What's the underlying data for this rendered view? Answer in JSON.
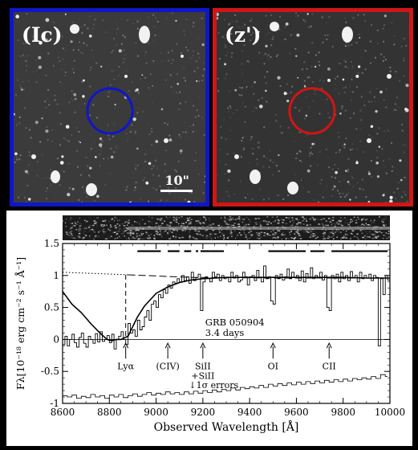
{
  "images": {
    "ic": {
      "band_label": "(Ic)",
      "circle_color": "#1016c8",
      "frame_color": "#1016c8"
    },
    "z": {
      "band_label": "(z')",
      "circle_color": "#d21515",
      "frame_color": "#d21515"
    },
    "scale_label": "10\""
  },
  "chart_data": {
    "type": "line",
    "title": "",
    "xlabel": "Observed Wavelength [Å]",
    "ylabel": "Fλ[10⁻¹⁸ erg cm⁻² s⁻¹ Å⁻¹]",
    "xlim": [
      8600,
      10000
    ],
    "ylim": [
      -1,
      1.5
    ],
    "x_ticks": [
      8600,
      8800,
      9000,
      9200,
      9400,
      9600,
      9800,
      10000
    ],
    "y_ticks": [
      {
        "value": 1.5,
        "label": "1.5"
      },
      {
        "value": 1,
        "label": "1"
      },
      {
        "value": 0.5,
        "label": "0.5"
      },
      {
        "value": 0,
        "label": "0"
      },
      {
        "value": -0.5,
        "label": "-0.5"
      },
      {
        "value": -1,
        "label": "-1"
      }
    ],
    "grb_label": "GRB 050904",
    "grb_time": "3.4 days",
    "errors_label": "↓1σ errors",
    "series": [
      {
        "values": [
          [
            8600,
            -0.08
          ],
          [
            8610,
            0.05
          ],
          [
            8620,
            -0.1
          ],
          [
            8630,
            0.0
          ],
          [
            8640,
            0.08
          ],
          [
            8650,
            -0.05
          ],
          [
            8660,
            -0.12
          ],
          [
            8670,
            0.03
          ],
          [
            8680,
            0.1
          ],
          [
            8690,
            -0.06
          ],
          [
            8700,
            -0.12
          ],
          [
            8710,
            0.05
          ],
          [
            8720,
            0.0
          ],
          [
            8730,
            -0.06
          ],
          [
            8740,
            0.09
          ],
          [
            8750,
            -0.04
          ],
          [
            8760,
            0.12
          ],
          [
            8770,
            -0.03
          ],
          [
            8780,
            0.0
          ],
          [
            8790,
            0.06
          ],
          [
            8800,
            -0.05
          ],
          [
            8810,
            0.08
          ],
          [
            8820,
            -0.15
          ],
          [
            8830,
            0.0
          ],
          [
            8840,
            0.05
          ],
          [
            8850,
            0.12
          ],
          [
            8860,
            0.0
          ],
          [
            8870,
            -0.08
          ],
          [
            8880,
            0.25
          ],
          [
            8890,
            0.1
          ],
          [
            8900,
            0.15
          ],
          [
            8910,
            0.05
          ],
          [
            8920,
            0.3
          ],
          [
            8930,
            0.15
          ],
          [
            8940,
            0.2
          ],
          [
            8950,
            0.35
          ],
          [
            8960,
            0.45
          ],
          [
            8970,
            0.3
          ],
          [
            8980,
            0.55
          ],
          [
            8990,
            0.6
          ],
          [
            9000,
            0.5
          ],
          [
            9010,
            0.7
          ],
          [
            9020,
            0.65
          ],
          [
            9030,
            0.78
          ],
          [
            9040,
            0.72
          ],
          [
            9050,
            0.85
          ],
          [
            9060,
            0.8
          ],
          [
            9070,
            0.9
          ],
          [
            9080,
            0.88
          ],
          [
            9090,
            0.95
          ],
          [
            9100,
            0.9
          ],
          [
            9110,
            1.0
          ],
          [
            9120,
            0.92
          ],
          [
            9130,
            0.98
          ],
          [
            9140,
            0.88
          ],
          [
            9150,
            1.05
          ],
          [
            9160,
            0.92
          ],
          [
            9170,
            0.97
          ],
          [
            9180,
            1.02
          ],
          [
            9190,
            0.45
          ],
          [
            9200,
            0.9
          ],
          [
            9210,
            0.98
          ],
          [
            9220,
            0.95
          ],
          [
            9230,
            0.9
          ],
          [
            9240,
            1.05
          ],
          [
            9250,
            0.98
          ],
          [
            9260,
            1.02
          ],
          [
            9270,
            0.92
          ],
          [
            9280,
            1.0
          ],
          [
            9290,
            0.95
          ],
          [
            9300,
            0.97
          ],
          [
            9310,
            0.9
          ],
          [
            9320,
            1.05
          ],
          [
            9330,
            0.96
          ],
          [
            9340,
            1.0
          ],
          [
            9350,
            0.9
          ],
          [
            9360,
            0.93
          ],
          [
            9370,
            1.05
          ],
          [
            9380,
            0.98
          ],
          [
            9390,
            0.85
          ],
          [
            9400,
            0.98
          ],
          [
            9410,
            1.0
          ],
          [
            9420,
            0.92
          ],
          [
            9430,
            1.08
          ],
          [
            9440,
            0.97
          ],
          [
            9450,
            0.9
          ],
          [
            9460,
            1.15
          ],
          [
            9470,
            0.95
          ],
          [
            9480,
            0.98
          ],
          [
            9490,
            0.6
          ],
          [
            9500,
            0.55
          ],
          [
            9510,
            1.0
          ],
          [
            9520,
            0.95
          ],
          [
            9530,
            1.02
          ],
          [
            9540,
            0.93
          ],
          [
            9550,
            0.98
          ],
          [
            9560,
            1.1
          ],
          [
            9570,
            0.95
          ],
          [
            9580,
            1.05
          ],
          [
            9590,
            0.97
          ],
          [
            9600,
            1.0
          ],
          [
            9610,
            0.92
          ],
          [
            9620,
            1.07
          ],
          [
            9630,
            0.9
          ],
          [
            9640,
            1.03
          ],
          [
            9650,
            0.96
          ],
          [
            9660,
            1.12
          ],
          [
            9670,
            0.95
          ],
          [
            9680,
            1.0
          ],
          [
            9690,
            0.97
          ],
          [
            9700,
            1.05
          ],
          [
            9710,
            0.93
          ],
          [
            9720,
            1.0
          ],
          [
            9730,
            0.5
          ],
          [
            9740,
            0.45
          ],
          [
            9750,
            1.0
          ],
          [
            9760,
            0.95
          ],
          [
            9770,
            1.02
          ],
          [
            9780,
            0.9
          ],
          [
            9790,
            1.05
          ],
          [
            9800,
            0.95
          ],
          [
            9810,
            1.0
          ],
          [
            9820,
            0.92
          ],
          [
            9830,
            1.06
          ],
          [
            9840,
            0.96
          ],
          [
            9850,
            1.0
          ],
          [
            9860,
            0.9
          ],
          [
            9870,
            1.05
          ],
          [
            9880,
            0.95
          ],
          [
            9890,
            1.0
          ],
          [
            9900,
            0.96
          ],
          [
            9910,
            1.02
          ],
          [
            9920,
            0.92
          ],
          [
            9930,
            1.0
          ],
          [
            9940,
            0.97
          ],
          [
            9950,
            -0.1
          ],
          [
            9960,
            0.95
          ],
          [
            9970,
            0.7
          ],
          [
            9980,
            1.0
          ],
          [
            9990,
            0.93
          ]
        ]
      },
      {
        "values": [
          [
            8600,
            -0.88
          ],
          [
            8620,
            -0.9
          ],
          [
            8640,
            -0.87
          ],
          [
            8660,
            -0.92
          ],
          [
            8680,
            -0.89
          ],
          [
            8700,
            -0.91
          ],
          [
            8720,
            -0.86
          ],
          [
            8740,
            -0.9
          ],
          [
            8760,
            -0.88
          ],
          [
            8780,
            -0.92
          ],
          [
            8800,
            -0.87
          ],
          [
            8820,
            -0.9
          ],
          [
            8840,
            -0.86
          ],
          [
            8860,
            -0.91
          ],
          [
            8880,
            -0.88
          ],
          [
            8900,
            -0.85
          ],
          [
            8920,
            -0.89
          ],
          [
            8940,
            -0.86
          ],
          [
            8960,
            -0.83
          ],
          [
            8980,
            -0.87
          ],
          [
            9000,
            -0.84
          ],
          [
            9020,
            -0.86
          ],
          [
            9040,
            -0.82
          ],
          [
            9060,
            -0.85
          ],
          [
            9080,
            -0.83
          ],
          [
            9100,
            -0.86
          ],
          [
            9120,
            -0.82
          ],
          [
            9140,
            -0.85
          ],
          [
            9160,
            -0.81
          ],
          [
            9180,
            -0.84
          ],
          [
            9200,
            -0.8
          ],
          [
            9220,
            -0.83
          ],
          [
            9240,
            -0.79
          ],
          [
            9260,
            -0.82
          ],
          [
            9280,
            -0.78
          ],
          [
            9300,
            -0.8
          ],
          [
            9320,
            -0.76
          ],
          [
            9340,
            -0.79
          ],
          [
            9360,
            -0.75
          ],
          [
            9380,
            -0.77
          ],
          [
            9400,
            -0.74
          ],
          [
            9420,
            -0.76
          ],
          [
            9440,
            -0.72
          ],
          [
            9460,
            -0.75
          ],
          [
            9480,
            -0.7
          ],
          [
            9500,
            -0.73
          ],
          [
            9520,
            -0.69
          ],
          [
            9540,
            -0.72
          ],
          [
            9560,
            -0.68
          ],
          [
            9580,
            -0.71
          ],
          [
            9600,
            -0.67
          ],
          [
            9620,
            -0.7
          ],
          [
            9640,
            -0.66
          ],
          [
            9660,
            -0.69
          ],
          [
            9680,
            -0.65
          ],
          [
            9700,
            -0.68
          ],
          [
            9720,
            -0.64
          ],
          [
            9740,
            -0.67
          ],
          [
            9760,
            -0.63
          ],
          [
            9780,
            -0.66
          ],
          [
            9800,
            -0.62
          ],
          [
            9820,
            -0.65
          ],
          [
            9840,
            -0.61
          ],
          [
            9860,
            -0.63
          ],
          [
            9880,
            -0.6
          ],
          [
            9900,
            -0.62
          ],
          [
            9920,
            -0.58
          ],
          [
            9940,
            -0.61
          ],
          [
            9960,
            -0.55
          ],
          [
            9980,
            -0.58
          ]
        ]
      },
      {
        "values": [
          [
            8600,
            0.75
          ],
          [
            8640,
            0.55
          ],
          [
            8680,
            0.42
          ],
          [
            8720,
            0.25
          ],
          [
            8760,
            0.1
          ],
          [
            8790,
            0.0
          ],
          [
            8810,
            -0.02
          ],
          [
            8830,
            0.0
          ],
          [
            8850,
            0.0
          ],
          [
            8880,
            0.05
          ],
          [
            8900,
            0.2
          ],
          [
            8920,
            0.35
          ],
          [
            8950,
            0.52
          ],
          [
            8980,
            0.64
          ],
          [
            9000,
            0.72
          ],
          [
            9050,
            0.82
          ],
          [
            9100,
            0.89
          ],
          [
            9150,
            0.93
          ],
          [
            9200,
            0.95
          ],
          [
            9300,
            0.97
          ],
          [
            9400,
            0.97
          ],
          [
            9500,
            0.97
          ],
          [
            9600,
            0.97
          ],
          [
            9700,
            0.97
          ],
          [
            9800,
            0.97
          ],
          [
            9900,
            0.96
          ],
          [
            10000,
            0.96
          ]
        ]
      },
      {
        "values": [
          [
            8600,
            1.05
          ],
          [
            8880,
            1.01
          ]
        ]
      },
      {
        "values": [
          [
            8880,
            1.01
          ],
          [
            9150,
            0.97
          ],
          [
            9500,
            0.96
          ],
          [
            10000,
            0.96
          ]
        ]
      },
      {
        "values": [
          [
            8870,
            1.01
          ],
          [
            8870,
            0.0
          ]
        ]
      }
    ],
    "annotations": [
      {
        "label": "Lyα",
        "wavelength": 8870
      },
      {
        "label": "(CIV)",
        "wavelength": 9050
      },
      {
        "label": "SiII\n+SiII",
        "wavelength": 9200
      },
      {
        "label": "OI",
        "wavelength": 9500
      },
      {
        "label": "CII",
        "wavelength": 9740
      }
    ],
    "mask_segments": [
      [
        8920,
        9020
      ],
      [
        9050,
        9100
      ],
      [
        9120,
        9150
      ],
      [
        9170,
        9180
      ],
      [
        9190,
        9230
      ],
      [
        9230,
        9290
      ],
      [
        9480,
        9640
      ],
      [
        9660,
        9720
      ],
      [
        9750,
        9990
      ]
    ]
  }
}
